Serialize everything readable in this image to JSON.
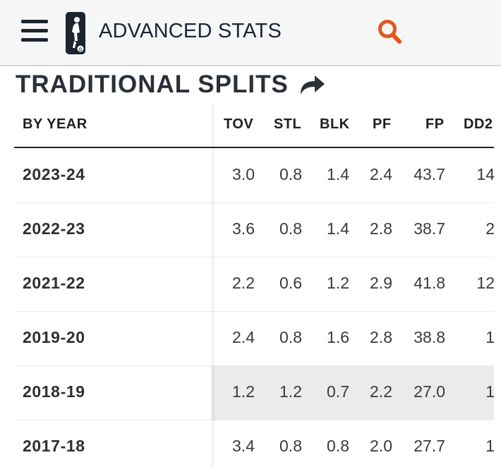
{
  "header": {
    "title": "ADVANCED STATS",
    "menu_icon": "hamburger-menu-icon",
    "logo_icon": "g-league-logo",
    "search_icon": "search-icon",
    "accent_color": "#e8531e"
  },
  "section": {
    "title": "TRADITIONAL SPLITS",
    "share_icon": "share-arrow-icon"
  },
  "table": {
    "headers": {
      "year": "BY YEAR",
      "tov": "TOV",
      "stl": "STL",
      "blk": "BLK",
      "pf": "PF",
      "fp": "FP",
      "dd2": "DD2"
    },
    "rows": [
      {
        "year": "2023-24",
        "tov": "3.0",
        "stl": "0.8",
        "blk": "1.4",
        "pf": "2.4",
        "fp": "43.7",
        "dd2": "14"
      },
      {
        "year": "2022-23",
        "tov": "3.6",
        "stl": "0.8",
        "blk": "1.4",
        "pf": "2.8",
        "fp": "38.7",
        "dd2": "2"
      },
      {
        "year": "2021-22",
        "tov": "2.2",
        "stl": "0.6",
        "blk": "1.2",
        "pf": "2.9",
        "fp": "41.8",
        "dd2": "12"
      },
      {
        "year": "2019-20",
        "tov": "2.4",
        "stl": "0.8",
        "blk": "1.6",
        "pf": "2.8",
        "fp": "38.8",
        "dd2": "1"
      },
      {
        "year": "2018-19",
        "tov": "1.2",
        "stl": "1.2",
        "blk": "0.7",
        "pf": "2.2",
        "fp": "27.0",
        "dd2": "1"
      },
      {
        "year": "2017-18",
        "tov": "3.4",
        "stl": "0.8",
        "blk": "0.8",
        "pf": "2.0",
        "fp": "27.7",
        "dd2": "1"
      }
    ]
  }
}
